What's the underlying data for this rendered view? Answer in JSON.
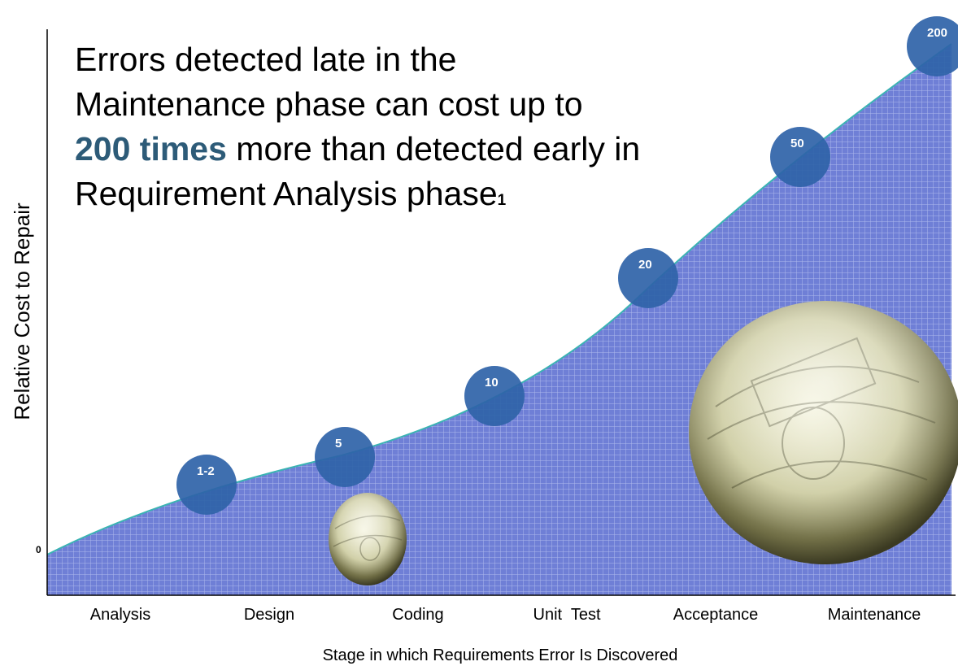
{
  "headline": {
    "part1": "Errors detected late in the Maintenance phase can cost up to ",
    "emphasis": "200 times",
    "part2": " more than detected early in Requirement Analysis phase",
    "footnote": "1"
  },
  "colors": {
    "area_fill": "#6f7fd6",
    "grid_lines": "#aeb8ec",
    "curve": "#3bb3b3",
    "bubble": "#2f63a8",
    "emphasis_text": "#2d5b78"
  },
  "chart_data": {
    "type": "area",
    "xlabel": "Stage in which Requirements Error Is Discovered",
    "ylabel": "Relative Cost to Repair",
    "y_tick_labels": [
      "0"
    ],
    "categories": [
      "Analysis",
      "Design",
      "Coding",
      "Unit  Test",
      "Acceptance",
      "Maintenance"
    ],
    "data_labels": [
      "1-2",
      "5",
      "10",
      "20",
      "50",
      "200"
    ],
    "grid": true,
    "legend": "none",
    "images": [
      "money-bubble-icon",
      "money-bubble-icon"
    ]
  }
}
